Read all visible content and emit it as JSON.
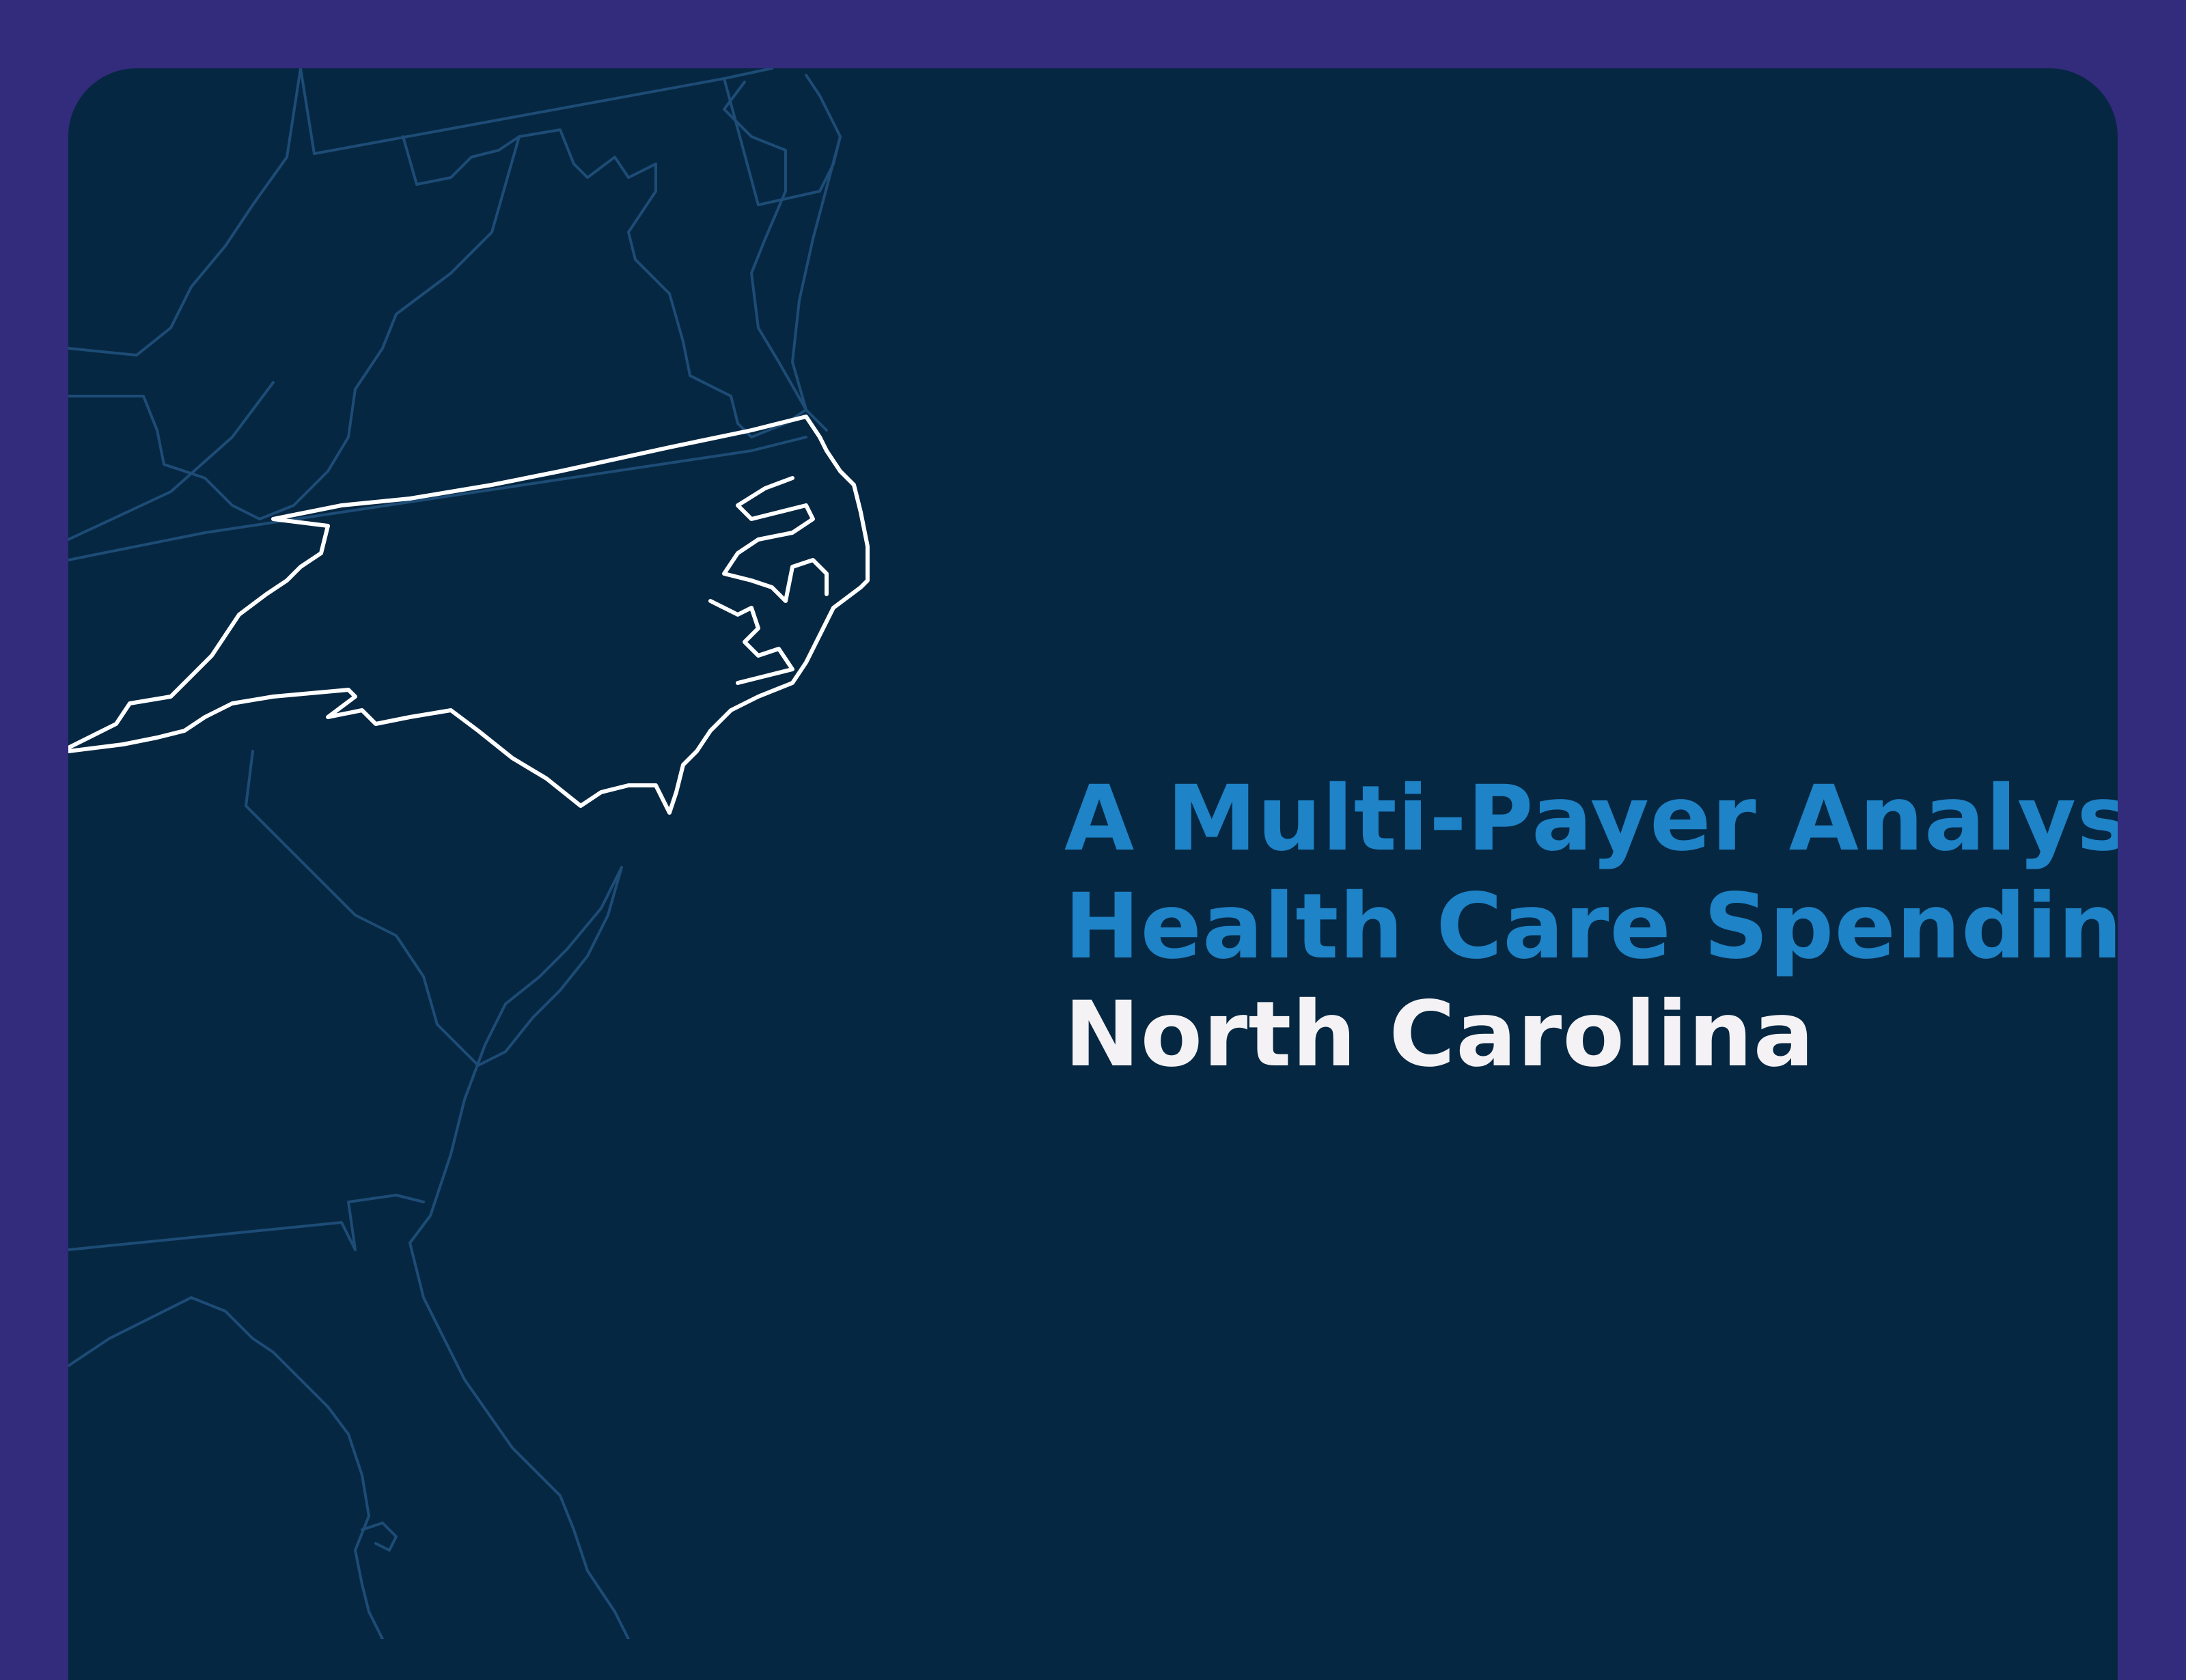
{
  "colors": {
    "frame": "#332b7c",
    "card": "#062742",
    "accent": "#1e83c7",
    "highlight_state": "#ffffff",
    "other_states": "#1d4c76"
  },
  "title": {
    "line1": "A Multi-Payer Analysis",
    "line2": "Health Care Spending",
    "line3": "North Carolina"
  }
}
